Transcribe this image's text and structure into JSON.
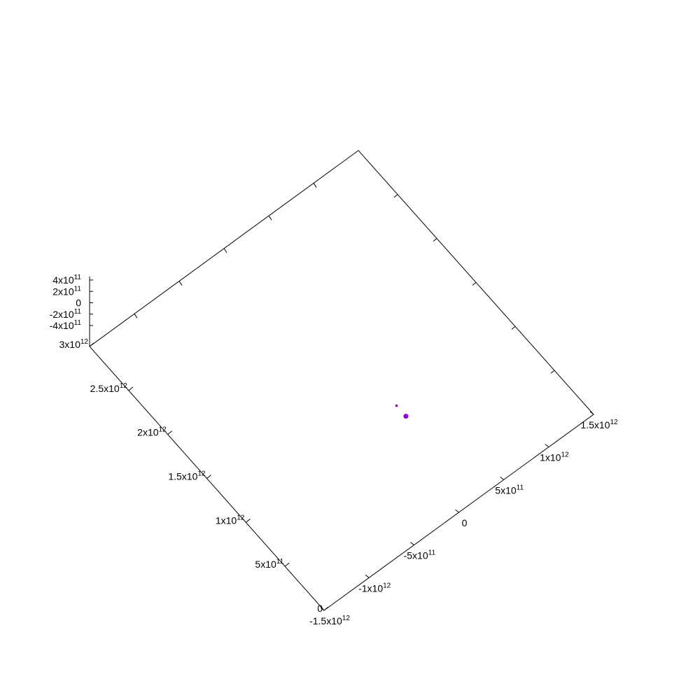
{
  "chart_data": {
    "type": "scatter",
    "title": "",
    "view": "3d",
    "grid": false,
    "legend": "none",
    "x_axis": {
      "label": "",
      "range": [
        -1500000000000,
        1500000000000
      ],
      "ticks": [
        {
          "value": -1500000000000,
          "base": "-1.5x10",
          "exp": "12"
        },
        {
          "value": -1000000000000,
          "base": "-1x10",
          "exp": "12"
        },
        {
          "value": -500000000000,
          "base": "-5x10",
          "exp": "11"
        },
        {
          "value": 0,
          "base": "0",
          "exp": ""
        },
        {
          "value": 500000000000,
          "base": "5x10",
          "exp": "11"
        },
        {
          "value": 1000000000000,
          "base": "1x10",
          "exp": "12"
        },
        {
          "value": 1500000000000,
          "base": "1.5x10",
          "exp": "12"
        }
      ]
    },
    "y_axis": {
      "label": "",
      "range": [
        0,
        3000000000000
      ],
      "ticks": [
        {
          "value": 0,
          "base": "0",
          "exp": ""
        },
        {
          "value": 500000000000,
          "base": "5x10",
          "exp": "11"
        },
        {
          "value": 1000000000000,
          "base": "1x10",
          "exp": "12"
        },
        {
          "value": 1500000000000,
          "base": "1.5x10",
          "exp": "12"
        },
        {
          "value": 2000000000000,
          "base": "2x10",
          "exp": "12"
        },
        {
          "value": 2500000000000,
          "base": "2.5x10",
          "exp": "12"
        },
        {
          "value": 3000000000000,
          "base": "3x10",
          "exp": "12"
        }
      ]
    },
    "z_axis": {
      "label": "",
      "range": [
        -500000000000,
        500000000000
      ],
      "ticks": [
        {
          "value": 400000000000,
          "base": "4x10",
          "exp": "11"
        },
        {
          "value": 200000000000,
          "base": "2x10",
          "exp": "11"
        },
        {
          "value": 0,
          "base": "0",
          "exp": ""
        },
        {
          "value": -200000000000,
          "base": "-2x10",
          "exp": "11"
        },
        {
          "value": -400000000000,
          "base": "-4x10",
          "exp": "11"
        }
      ]
    },
    "series": [
      {
        "color": "#9400d3",
        "points": [
          {
            "x": 220000000000,
            "y": 930000000000,
            "z": 0,
            "size": "large"
          },
          {
            "x": 220000000000,
            "y": 1050000000000,
            "z": 0,
            "size": "small"
          }
        ]
      }
    ]
  }
}
